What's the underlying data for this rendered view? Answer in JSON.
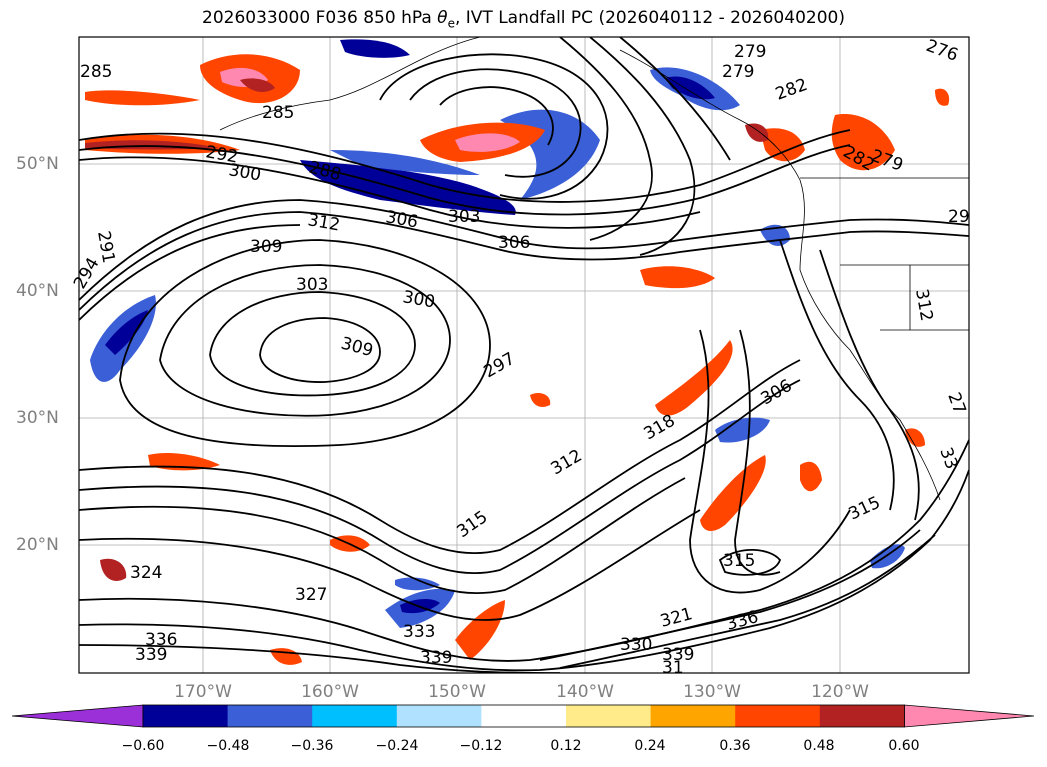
{
  "title": {
    "prefix": "2026033000 F036 850 hPa ",
    "var_symbol": "θ",
    "var_sub": "e",
    "suffix": ", IVT Landfall PC (2026040112 - 2026040200)"
  },
  "axes": {
    "lat_labels": [
      "50°N",
      "40°N",
      "30°N",
      "20°N"
    ],
    "lon_labels": [
      "170°W",
      "160°W",
      "150°W",
      "140°W",
      "130°W",
      "120°W"
    ]
  },
  "contour_labels": [
    "285",
    "285",
    "292",
    "300",
    "288",
    "306",
    "303",
    "312",
    "309",
    "303",
    "300",
    "309",
    "306",
    "297",
    "279",
    "279",
    "282",
    "276",
    "282",
    "279",
    "291",
    "294",
    "29",
    "312",
    "315",
    "312",
    "318",
    "306",
    "315",
    "315",
    "324",
    "327",
    "333",
    "336",
    "339",
    "339",
    "330",
    "321",
    "336",
    "339",
    "31",
    "27",
    "33"
  ],
  "colorbar": {
    "ticks": [
      "−0.60",
      "−0.48",
      "−0.36",
      "−0.24",
      "−0.12",
      "0.12",
      "0.24",
      "0.36",
      "0.48",
      "0.60"
    ],
    "colors": [
      "#9b30d9",
      "#000099",
      "#3b5fd6",
      "#00bfff",
      "#b0e2ff",
      "#ffffff",
      "#ffeb8a",
      "#ffa500",
      "#ff4500",
      "#b22222",
      "#ff88b0"
    ]
  }
}
